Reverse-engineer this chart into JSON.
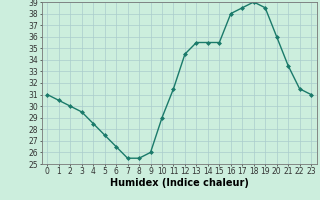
{
  "x": [
    0,
    1,
    2,
    3,
    4,
    5,
    6,
    7,
    8,
    9,
    10,
    11,
    12,
    13,
    14,
    15,
    16,
    17,
    18,
    19,
    20,
    21,
    22,
    23
  ],
  "y": [
    31.0,
    30.5,
    30.0,
    29.5,
    28.5,
    27.5,
    26.5,
    25.5,
    25.5,
    26.0,
    29.0,
    31.5,
    34.5,
    35.5,
    35.5,
    35.5,
    38.0,
    38.5,
    39.0,
    38.5,
    36.0,
    33.5,
    31.5,
    31.0
  ],
  "line_color": "#1a7a6a",
  "marker": "D",
  "marker_size": 2,
  "bg_color": "#cceedd",
  "grid_color": "#aacccc",
  "xlabel": "Humidex (Indice chaleur)",
  "ylim": [
    25,
    39
  ],
  "xlim": [
    -0.5,
    23.5
  ],
  "yticks": [
    25,
    26,
    27,
    28,
    29,
    30,
    31,
    32,
    33,
    34,
    35,
    36,
    37,
    38,
    39
  ],
  "xticks": [
    0,
    1,
    2,
    3,
    4,
    5,
    6,
    7,
    8,
    9,
    10,
    11,
    12,
    13,
    14,
    15,
    16,
    17,
    18,
    19,
    20,
    21,
    22,
    23
  ],
  "tick_fontsize": 5.5,
  "xlabel_fontsize": 7,
  "linewidth": 1.0
}
